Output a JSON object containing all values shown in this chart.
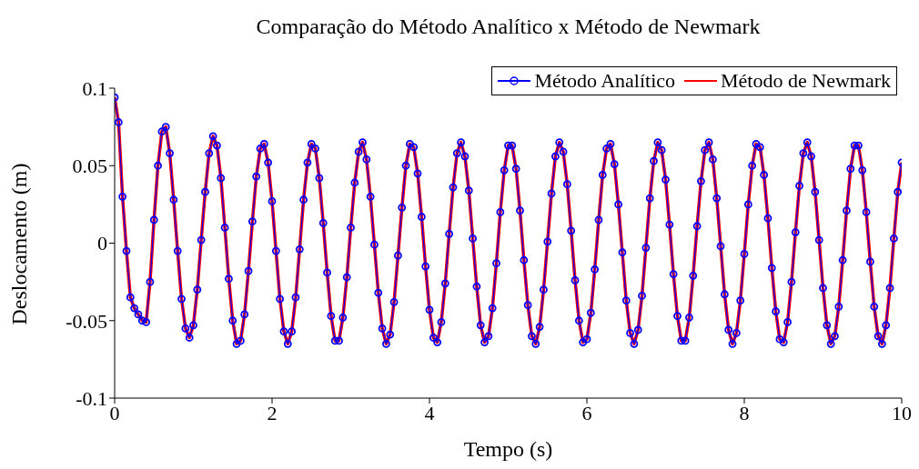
{
  "chart_data": {
    "type": "line",
    "title": "Comparação do Método Analítico x Método de Newmark",
    "xlabel": "Tempo (s)",
    "ylabel": "Deslocamento (m)",
    "xlim": [
      0,
      10
    ],
    "xticks": [
      0,
      2,
      4,
      6,
      8,
      10
    ],
    "ylim": [
      -0.1,
      0.1
    ],
    "yticks": [
      -0.1,
      -0.05,
      0,
      0.05,
      0.1
    ],
    "grid": false,
    "legend": "top right",
    "x": [
      0,
      0.05,
      0.1,
      0.15,
      0.2,
      0.25,
      0.3,
      0.35,
      0.4,
      0.45,
      0.5,
      0.55,
      0.6,
      0.65,
      0.7,
      0.75,
      0.8,
      0.85,
      0.9,
      0.95,
      1,
      1.05,
      1.1,
      1.15,
      1.2,
      1.25,
      1.3,
      1.35,
      1.4,
      1.45,
      1.5,
      1.55,
      1.6,
      1.65,
      1.7,
      1.75,
      1.8,
      1.85,
      1.9,
      1.95,
      2,
      2.05,
      2.1,
      2.15,
      2.2,
      2.25,
      2.3,
      2.35,
      2.4,
      2.45,
      2.5,
      2.55,
      2.6,
      2.65,
      2.7,
      2.75,
      2.8,
      2.85,
      2.9,
      2.95,
      3,
      3.05,
      3.1,
      3.15,
      3.2,
      3.25,
      3.3,
      3.35,
      3.4,
      3.45,
      3.5,
      3.55,
      3.6,
      3.65,
      3.7,
      3.75,
      3.8,
      3.85,
      3.9,
      3.95,
      4,
      4.05,
      4.1,
      4.15,
      4.2,
      4.25,
      4.3,
      4.35,
      4.4,
      4.45,
      4.5,
      4.55,
      4.6,
      4.65,
      4.7,
      4.75,
      4.8,
      4.85,
      4.9,
      4.95,
      5,
      5.05,
      5.1,
      5.15,
      5.2,
      5.25,
      5.3,
      5.35,
      5.4,
      5.45,
      5.5,
      5.55,
      5.6,
      5.65,
      5.7,
      5.75,
      5.8,
      5.85,
      5.9,
      5.95,
      6,
      6.05,
      6.1,
      6.15,
      6.2,
      6.25,
      6.3,
      6.35,
      6.4,
      6.45,
      6.5,
      6.55,
      6.6,
      6.65,
      6.7,
      6.75,
      6.8,
      6.85,
      6.9,
      6.95,
      7,
      7.05,
      7.1,
      7.15,
      7.2,
      7.25,
      7.3,
      7.35,
      7.4,
      7.45,
      7.5,
      7.55,
      7.6,
      7.65,
      7.7,
      7.75,
      7.8,
      7.85,
      7.9,
      7.95,
      8,
      8.05,
      8.1,
      8.15,
      8.2,
      8.25,
      8.3,
      8.35,
      8.4,
      8.45,
      8.5,
      8.55,
      8.6,
      8.65,
      8.7,
      8.75,
      8.8,
      8.85,
      8.9,
      8.95,
      9,
      9.05,
      9.1,
      9.15,
      9.2,
      9.25,
      9.3,
      9.35,
      9.4,
      9.45,
      9.5,
      9.55,
      9.6,
      9.65,
      9.7,
      9.75,
      9.8,
      9.85,
      9.9,
      9.95,
      10
    ],
    "series": [
      {
        "name": "Método Analítico",
        "color": "#0000ff",
        "marker": "circle",
        "values": [
          0.094,
          0.078,
          0.03,
          -0.005,
          -0.035,
          -0.042,
          -0.046,
          -0.05,
          -0.051,
          -0.025,
          0.015,
          0.05,
          0.072,
          0.075,
          0.058,
          0.028,
          -0.005,
          -0.036,
          -0.055,
          -0.061,
          -0.053,
          -0.03,
          0.002,
          0.033,
          0.058,
          0.069,
          0.063,
          0.042,
          0.01,
          -0.023,
          -0.05,
          -0.065,
          -0.063,
          -0.046,
          -0.018,
          0.014,
          0.043,
          0.061,
          0.064,
          0.052,
          0.027,
          -0.005,
          -0.036,
          -0.057,
          -0.065,
          -0.057,
          -0.035,
          -0.004,
          0.028,
          0.052,
          0.064,
          0.061,
          0.042,
          0.013,
          -0.019,
          -0.047,
          -0.063,
          -0.063,
          -0.048,
          -0.022,
          0.01,
          0.039,
          0.059,
          0.065,
          0.054,
          0.03,
          -0.001,
          -0.032,
          -0.055,
          -0.065,
          -0.059,
          -0.038,
          -0.008,
          0.023,
          0.05,
          0.064,
          0.062,
          0.045,
          0.017,
          -0.015,
          -0.043,
          -0.061,
          -0.064,
          -0.051,
          -0.026,
          0.006,
          0.036,
          0.058,
          0.065,
          0.056,
          0.034,
          0.003,
          -0.028,
          -0.053,
          -0.064,
          -0.06,
          -0.042,
          -0.013,
          0.02,
          0.047,
          0.063,
          0.063,
          0.048,
          0.021,
          -0.011,
          -0.04,
          -0.06,
          -0.065,
          -0.054,
          -0.03,
          0.001,
          0.032,
          0.056,
          0.065,
          0.059,
          0.038,
          0.008,
          -0.024,
          -0.05,
          -0.064,
          -0.062,
          -0.045,
          -0.017,
          0.015,
          0.044,
          0.061,
          0.064,
          0.051,
          0.025,
          -0.006,
          -0.037,
          -0.058,
          -0.065,
          -0.056,
          -0.034,
          -0.003,
          0.029,
          0.053,
          0.065,
          0.06,
          0.041,
          0.012,
          -0.02,
          -0.047,
          -0.063,
          -0.063,
          -0.048,
          -0.021,
          0.011,
          0.04,
          0.06,
          0.065,
          0.054,
          0.029,
          -0.002,
          -0.033,
          -0.056,
          -0.065,
          -0.058,
          -0.037,
          -0.007,
          0.025,
          0.05,
          0.064,
          0.062,
          0.044,
          0.016,
          -0.016,
          -0.044,
          -0.062,
          -0.064,
          -0.051,
          -0.025,
          0.007,
          0.037,
          0.058,
          0.065,
          0.056,
          0.033,
          0.002,
          -0.029,
          -0.053,
          -0.065,
          -0.06,
          -0.041,
          -0.011,
          0.021,
          0.048,
          0.063,
          0.063,
          0.047,
          0.02,
          -0.012,
          -0.041,
          -0.06,
          -0.065,
          -0.053,
          -0.029,
          0.003,
          0.033,
          0.052
        ]
      },
      {
        "name": "Método de Newmark",
        "color": "#ff0000",
        "marker": "none",
        "values": [
          0.094,
          0.078,
          0.03,
          -0.005,
          -0.035,
          -0.042,
          -0.046,
          -0.05,
          -0.051,
          -0.025,
          0.015,
          0.05,
          0.072,
          0.075,
          0.058,
          0.028,
          -0.005,
          -0.036,
          -0.055,
          -0.061,
          -0.053,
          -0.03,
          0.002,
          0.033,
          0.058,
          0.069,
          0.063,
          0.042,
          0.01,
          -0.023,
          -0.05,
          -0.065,
          -0.063,
          -0.046,
          -0.018,
          0.014,
          0.043,
          0.061,
          0.064,
          0.052,
          0.027,
          -0.005,
          -0.036,
          -0.057,
          -0.065,
          -0.057,
          -0.035,
          -0.004,
          0.028,
          0.052,
          0.064,
          0.061,
          0.042,
          0.013,
          -0.019,
          -0.047,
          -0.063,
          -0.063,
          -0.048,
          -0.022,
          0.01,
          0.039,
          0.059,
          0.065,
          0.054,
          0.03,
          -0.001,
          -0.032,
          -0.055,
          -0.065,
          -0.059,
          -0.038,
          -0.008,
          0.023,
          0.05,
          0.064,
          0.062,
          0.045,
          0.017,
          -0.015,
          -0.043,
          -0.061,
          -0.064,
          -0.051,
          -0.026,
          0.006,
          0.036,
          0.058,
          0.065,
          0.056,
          0.034,
          0.003,
          -0.028,
          -0.053,
          -0.064,
          -0.06,
          -0.042,
          -0.013,
          0.02,
          0.047,
          0.063,
          0.063,
          0.048,
          0.021,
          -0.011,
          -0.04,
          -0.06,
          -0.065,
          -0.054,
          -0.03,
          0.001,
          0.032,
          0.056,
          0.065,
          0.059,
          0.038,
          0.008,
          -0.024,
          -0.05,
          -0.064,
          -0.062,
          -0.045,
          -0.017,
          0.015,
          0.044,
          0.061,
          0.064,
          0.051,
          0.025,
          -0.006,
          -0.037,
          -0.058,
          -0.065,
          -0.056,
          -0.034,
          -0.003,
          0.029,
          0.053,
          0.065,
          0.06,
          0.041,
          0.012,
          -0.02,
          -0.047,
          -0.063,
          -0.063,
          -0.048,
          -0.021,
          0.011,
          0.04,
          0.06,
          0.065,
          0.054,
          0.029,
          -0.002,
          -0.033,
          -0.056,
          -0.065,
          -0.058,
          -0.037,
          -0.007,
          0.025,
          0.05,
          0.064,
          0.062,
          0.044,
          0.016,
          -0.016,
          -0.044,
          -0.062,
          -0.064,
          -0.051,
          -0.025,
          0.007,
          0.037,
          0.058,
          0.065,
          0.056,
          0.033,
          0.002,
          -0.029,
          -0.053,
          -0.065,
          -0.06,
          -0.041,
          -0.011,
          0.021,
          0.048,
          0.063,
          0.063,
          0.047,
          0.02,
          -0.012,
          -0.041,
          -0.06,
          -0.065,
          -0.053,
          -0.029,
          0.003,
          0.033,
          0.052
        ]
      }
    ]
  }
}
